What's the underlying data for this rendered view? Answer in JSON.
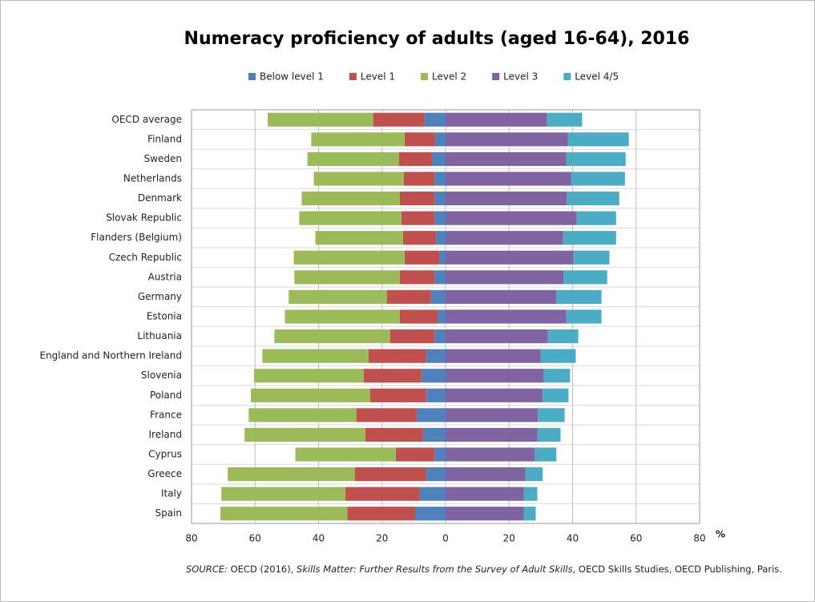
{
  "chart_data": {
    "type": "diverging-stacked-bar",
    "title": "Numeracy proficiency of adults (aged 16-64), 2016",
    "x_label": "%",
    "categories": [
      "OECD average",
      "Finland",
      "Sweden",
      "Netherlands",
      "Denmark",
      "Slovak Republic",
      "Flanders (Belgium)",
      "Czech Republic",
      "Austria",
      "Germany",
      "Estonia",
      "Lithuania",
      "England and Northern Ireland",
      "Slovenia",
      "Poland",
      "France",
      "Ireland",
      "Cyprus",
      "Greece",
      "Italy",
      "Spain"
    ],
    "series": [
      {
        "name": "Below level 1",
        "color": "#4f81bd",
        "values": [
          -6.6,
          -3.3,
          -4.3,
          -3.5,
          -3.5,
          -3.5,
          -3.0,
          -2.0,
          -3.5,
          -4.6,
          -2.5,
          -3.5,
          -6.1,
          -7.6,
          -6.1,
          -9.1,
          -7.1,
          -3.5,
          -6.1,
          -8.1,
          -9.6
        ]
      },
      {
        "name": "Level 1",
        "color": "#c0504d",
        "values": [
          -16.2,
          -9.6,
          -10.4,
          -9.7,
          -10.9,
          -10.4,
          -10.4,
          -10.9,
          -10.9,
          -13.9,
          -11.9,
          -14.0,
          -18.2,
          -18.2,
          -17.7,
          -19.0,
          -18.2,
          -12.2,
          -22.5,
          -23.5,
          -21.3
        ]
      },
      {
        "name": "Level 2",
        "color": "#9bbb59",
        "values": [
          -33.2,
          -29.4,
          -28.8,
          -28.3,
          -30.9,
          -32.2,
          -27.6,
          -34.9,
          -33.2,
          -30.9,
          -36.2,
          -36.4,
          -33.4,
          -34.5,
          -37.5,
          -33.9,
          -38.0,
          -31.6,
          -40.0,
          -39.0,
          -40.0
        ]
      },
      {
        "name": "Level 3",
        "color": "#8064a2",
        "values": [
          31.9,
          38.5,
          38.0,
          39.5,
          38.2,
          41.3,
          37.0,
          40.3,
          37.2,
          34.9,
          38.0,
          32.2,
          29.9,
          30.9,
          30.6,
          29.1,
          28.9,
          28.1,
          25.1,
          24.6,
          24.6
        ]
      },
      {
        "name": "Level 4/5",
        "color": "#4bacc6",
        "values": [
          11.1,
          19.2,
          18.7,
          17.0,
          16.5,
          12.4,
          16.7,
          11.3,
          13.7,
          14.2,
          11.1,
          9.6,
          11.1,
          8.3,
          8.1,
          8.4,
          7.3,
          6.8,
          5.5,
          4.3,
          3.8
        ]
      }
    ],
    "xlim": [
      -80,
      80
    ],
    "xticks": [
      {
        "value": -80,
        "label": "80"
      },
      {
        "value": -60,
        "label": "60"
      },
      {
        "value": -40,
        "label": "40"
      },
      {
        "value": -20,
        "label": "20"
      },
      0,
      20,
      40,
      60,
      80
    ],
    "grid": true,
    "legend": "top",
    "source": [
      "SOURCE:",
      " OECD (2016), ",
      "Skills Matter: Further Results from the Survey of Adult Skills",
      ", OECD Skills Studies, OECD Publishing, Paris."
    ],
    "source_italic": [
      true,
      false,
      true,
      false
    ]
  }
}
